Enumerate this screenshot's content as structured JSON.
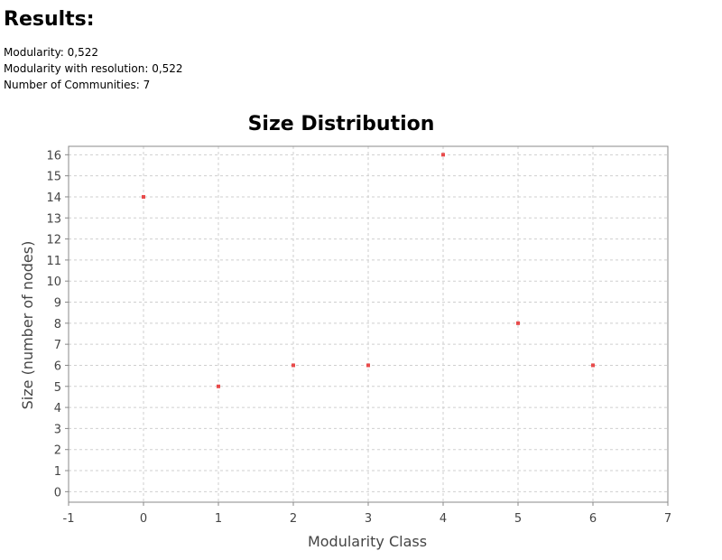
{
  "results": {
    "title": "Results:",
    "stats": [
      "Modularity: 0,522",
      "Modularity with resolution: 0,522",
      "Number of Communities: 7"
    ]
  },
  "colors": {
    "point": "#e84a4a",
    "grid": "#cfcfcf",
    "axis": "#888888",
    "text": "#444444"
  },
  "chart_data": {
    "type": "scatter",
    "title": "Size Distribution",
    "xlabel": "Modularity Class",
    "ylabel": "Size (number of nodes)",
    "xlim": [
      -1,
      7
    ],
    "ylim": [
      0,
      16
    ],
    "xticks": [
      -1,
      0,
      1,
      2,
      3,
      4,
      5,
      6,
      7
    ],
    "yticks": [
      0,
      1,
      2,
      3,
      4,
      5,
      6,
      7,
      8,
      9,
      10,
      11,
      12,
      13,
      14,
      15,
      16
    ],
    "grid": true,
    "points": [
      {
        "x": 0,
        "y": 14
      },
      {
        "x": 1,
        "y": 5
      },
      {
        "x": 2,
        "y": 6
      },
      {
        "x": 3,
        "y": 6
      },
      {
        "x": 4,
        "y": 16
      },
      {
        "x": 5,
        "y": 8
      },
      {
        "x": 6,
        "y": 6
      }
    ]
  }
}
